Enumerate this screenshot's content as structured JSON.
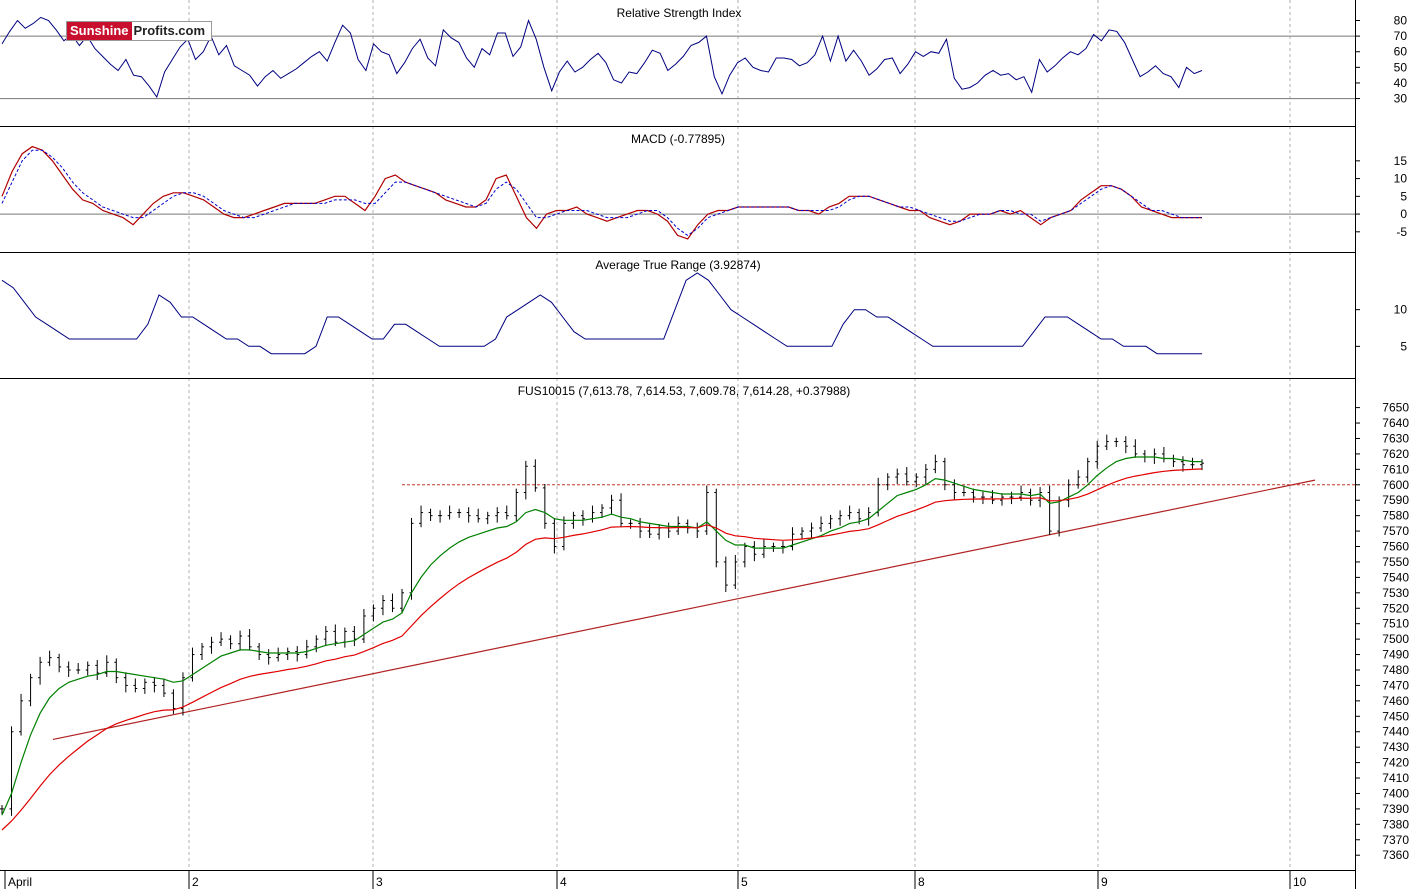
{
  "logo": {
    "part1": "Sunshine",
    "part2": "Profits",
    "part3": ".com"
  },
  "colors": {
    "price_bars": "#000000",
    "ma_short": "#008000",
    "ma_long": "#e00000",
    "trendline": "#b22222",
    "support": "#c0392b",
    "rsi_line": "#000080",
    "macd_line": "#b00000",
    "macd_signal": "#0000cc",
    "atr_line": "#000080",
    "grid": "#b0b0b0",
    "ref_line": "#777777"
  },
  "chart_data": [
    {
      "type": "line",
      "title": "Relative Strength Index",
      "ylim": [
        15,
        88
      ],
      "yticks": [
        "80",
        "70",
        "60",
        "50",
        "40",
        "30"
      ],
      "ref_lines": [
        70,
        30
      ],
      "series": [
        {
          "values": [
            65,
            73,
            80,
            75,
            78,
            82,
            80,
            74,
            67,
            71,
            64,
            70,
            62,
            57,
            52,
            48,
            55,
            45,
            44,
            38,
            31,
            47,
            55,
            63,
            68,
            55,
            60,
            70,
            58,
            64,
            51,
            48,
            45,
            38,
            44,
            48,
            43,
            46,
            49,
            53,
            57,
            60,
            54,
            66,
            77,
            72,
            55,
            48,
            65,
            60,
            58,
            46,
            53,
            62,
            68,
            56,
            51,
            74,
            69,
            66,
            56,
            50,
            62,
            58,
            72,
            72,
            57,
            63,
            80,
            68,
            50,
            35,
            47,
            54,
            47,
            50,
            55,
            59,
            53,
            42,
            40,
            47,
            46,
            53,
            61,
            59,
            48,
            52,
            57,
            64,
            66,
            70,
            44,
            33,
            45,
            53,
            56,
            50,
            48,
            47,
            56,
            56,
            55,
            51,
            53,
            58,
            70,
            54,
            70,
            54,
            61,
            54,
            45,
            49,
            55,
            56,
            46,
            52,
            60,
            57,
            60,
            59,
            68,
            43,
            36,
            37,
            40,
            45,
            48,
            45,
            46,
            42,
            44,
            34,
            55,
            47,
            51,
            56,
            60,
            58,
            62,
            71,
            67,
            74,
            73,
            66,
            55,
            44,
            47,
            51,
            46,
            44,
            37,
            50,
            46,
            48
          ]
        }
      ]
    },
    {
      "type": "line",
      "title": "MACD (-0.77895)",
      "ylim": [
        -9,
        22
      ],
      "yticks": [
        "15",
        "10",
        "5",
        "0",
        "-5"
      ],
      "ref_lines": [
        0
      ],
      "series": [
        {
          "values": [
            5,
            12,
            17,
            19,
            18,
            15,
            11,
            7,
            4,
            3,
            1,
            0,
            -1,
            -3,
            0,
            3,
            5,
            6,
            6,
            5,
            4,
            2,
            0,
            -1,
            -1,
            0,
            1,
            2,
            3,
            3,
            3,
            3,
            4,
            5,
            5,
            3,
            1,
            5,
            10,
            11,
            9,
            8,
            7,
            6,
            4,
            3,
            2,
            2,
            4,
            10,
            11,
            5,
            -1,
            -4,
            0,
            1,
            1,
            2,
            0,
            -1,
            -2,
            -1,
            0,
            1,
            1,
            0,
            -2,
            -6,
            -7,
            -3,
            0,
            1,
            1,
            2,
            2,
            2,
            2,
            2,
            2,
            1,
            1,
            0,
            2,
            3,
            5,
            5,
            5,
            4,
            3,
            2,
            1,
            1,
            -1,
            -2,
            -3,
            -2,
            0,
            0,
            0,
            1,
            0,
            1,
            -1,
            -3,
            -1,
            0,
            1,
            4,
            6,
            8,
            8,
            7,
            5,
            2,
            1,
            0,
            -1,
            -1,
            -1,
            -1
          ]
        },
        {
          "values": [
            3,
            9,
            15,
            18,
            18,
            16,
            13,
            9,
            6,
            4,
            2,
            1,
            0,
            -1,
            -1,
            1,
            3,
            5,
            6,
            6,
            5,
            3,
            1,
            0,
            -1,
            -1,
            0,
            1,
            2,
            3,
            3,
            3,
            3,
            4,
            4,
            4,
            3,
            3,
            6,
            9,
            9,
            8,
            7,
            6,
            5,
            4,
            3,
            2,
            3,
            7,
            9,
            7,
            3,
            -1,
            -1,
            0,
            1,
            1,
            1,
            0,
            -1,
            -1,
            -1,
            0,
            1,
            1,
            -1,
            -4,
            -6,
            -4,
            -1,
            0,
            1,
            2,
            2,
            2,
            2,
            2,
            2,
            1,
            1,
            1,
            1,
            2,
            4,
            5,
            5,
            4,
            3,
            2,
            2,
            1,
            0,
            -1,
            -2,
            -2,
            -1,
            0,
            0,
            1,
            1,
            0,
            0,
            -2,
            -1,
            0,
            1,
            3,
            5,
            7,
            8,
            7,
            5,
            3,
            1,
            1,
            0,
            -1,
            -1,
            -1
          ]
        }
      ]
    },
    {
      "type": "line",
      "title": "Average True Range (3.92874)",
      "ylim": [
        1.5,
        16.5
      ],
      "yticks": [
        "10",
        "5"
      ],
      "series": [
        {
          "values": [
            14,
            13,
            11,
            9,
            8,
            7,
            6,
            6,
            6,
            6,
            6,
            6,
            6,
            8,
            12,
            11,
            9,
            9,
            8,
            7,
            6,
            6,
            5,
            5,
            4,
            4,
            4,
            4,
            5,
            9,
            9,
            8,
            7,
            6,
            6,
            8,
            8,
            7,
            6,
            5,
            5,
            5,
            5,
            5,
            6,
            9,
            10,
            11,
            12,
            11,
            9,
            7,
            6,
            6,
            6,
            6,
            6,
            6,
            6,
            6,
            10,
            14,
            15,
            14,
            12,
            10,
            9,
            8,
            7,
            6,
            5,
            5,
            5,
            5,
            5,
            8,
            10,
            10,
            9,
            9,
            8,
            7,
            6,
            5,
            5,
            5,
            5,
            5,
            5,
            5,
            5,
            5,
            7,
            9,
            9,
            9,
            8,
            7,
            6,
            6,
            5,
            5,
            5,
            4,
            4,
            4,
            4,
            4
          ]
        }
      ]
    },
    {
      "type": "bar",
      "title": "FUS10015 (7,613.78, 7,614.53, 7,609.78, 7,614.28, +0.37988)",
      "ylim": [
        7353,
        7664
      ],
      "yticks": [
        "7650",
        "7640",
        "7630",
        "7620",
        "7610",
        "7600",
        "7590",
        "7580",
        "7570",
        "7560",
        "7550",
        "7540",
        "7530",
        "7520",
        "7510",
        "7500",
        "7490",
        "7480",
        "7470",
        "7460",
        "7450",
        "7440",
        "7430",
        "7420",
        "7410",
        "7400",
        "7390",
        "7380",
        "7370",
        "7360"
      ],
      "x_dates": [
        "April",
        "2",
        "3",
        "4",
        "5",
        "8",
        "9",
        "10"
      ],
      "support_level": 7600,
      "trendline": {
        "start": 7435,
        "end": 7603
      },
      "closes": [
        7390,
        7440,
        7460,
        7475,
        7485,
        7488,
        7482,
        7480,
        7480,
        7483,
        7478,
        7485,
        7475,
        7470,
        7468,
        7472,
        7470,
        7465,
        7455,
        7475,
        7490,
        7495,
        7498,
        7500,
        7497,
        7502,
        7495,
        7490,
        7488,
        7490,
        7492,
        7490,
        7495,
        7500,
        7505,
        7498,
        7505,
        7500,
        7515,
        7520,
        7525,
        7520,
        7530,
        7575,
        7582,
        7580,
        7580,
        7582,
        7582,
        7580,
        7578,
        7580,
        7582,
        7580,
        7595,
        7612,
        7598,
        7575,
        7560,
        7575,
        7580,
        7578,
        7582,
        7585,
        7590,
        7575,
        7575,
        7570,
        7568,
        7572,
        7570,
        7575,
        7572,
        7570,
        7595,
        7550,
        7535,
        7550,
        7560,
        7555,
        7560,
        7560,
        7560,
        7568,
        7570,
        7572,
        7575,
        7578,
        7580,
        7582,
        7578,
        7582,
        7600,
        7605,
        7607,
        7602,
        7605,
        7610,
        7615,
        7600,
        7595,
        7595,
        7592,
        7592,
        7590,
        7592,
        7592,
        7595,
        7590,
        7595,
        7570,
        7590,
        7600,
        7605,
        7615,
        7625,
        7628,
        7628,
        7625,
        7620,
        7618,
        7620,
        7617,
        7615,
        7613,
        7613,
        7614
      ],
      "ma_short": [
        7386,
        7400,
        7420,
        7438,
        7452,
        7462,
        7468,
        7472,
        7474,
        7476,
        7477,
        7479,
        7479,
        7478,
        7477,
        7476,
        7475,
        7474,
        7472,
        7473,
        7477,
        7481,
        7485,
        7489,
        7491,
        7493,
        7493,
        7492,
        7491,
        7491,
        7491,
        7491,
        7492,
        7494,
        7496,
        7497,
        7498,
        7499,
        7503,
        7507,
        7511,
        7513,
        7517,
        7530,
        7540,
        7548,
        7554,
        7559,
        7563,
        7566,
        7568,
        7570,
        7572,
        7573,
        7576,
        7582,
        7584,
        7582,
        7578,
        7577,
        7577,
        7577,
        7578,
        7579,
        7581,
        7579,
        7578,
        7576,
        7575,
        7574,
        7573,
        7573,
        7573,
        7572,
        7576,
        7570,
        7564,
        7561,
        7561,
        7559,
        7559,
        7559,
        7559,
        7561,
        7563,
        7565,
        7567,
        7570,
        7572,
        7575,
        7576,
        7578,
        7583,
        7588,
        7593,
        7595,
        7597,
        7600,
        7604,
        7603,
        7601,
        7599,
        7597,
        7596,
        7595,
        7594,
        7594,
        7594,
        7593,
        7594,
        7588,
        7589,
        7592,
        7595,
        7600,
        7606,
        7611,
        7615,
        7617,
        7618,
        7618,
        7618,
        7617,
        7617,
        7616,
        7615,
        7615
      ]
    }
  ]
}
